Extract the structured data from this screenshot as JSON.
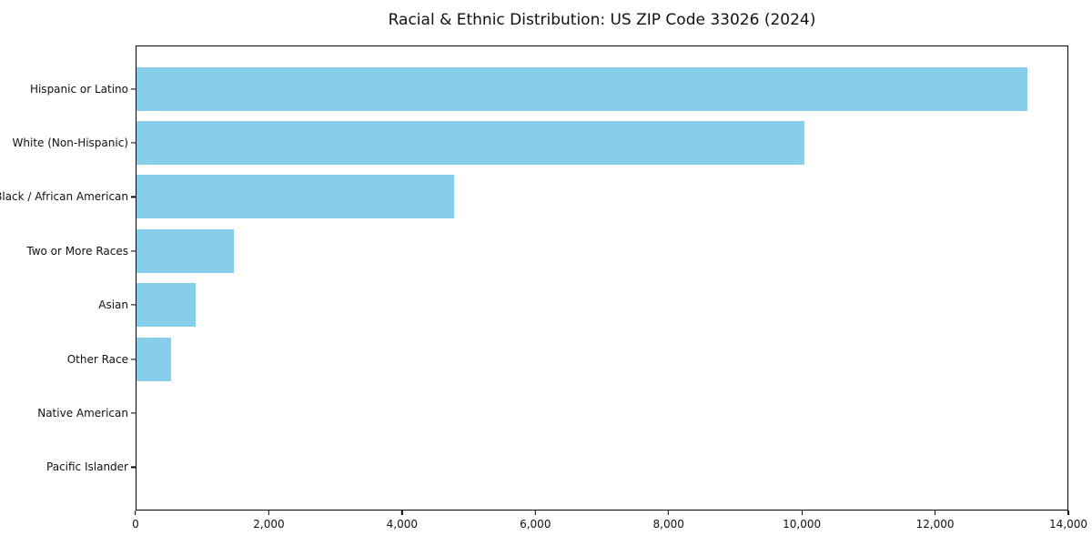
{
  "page": {
    "background": "#ffffff"
  },
  "chart_data": {
    "type": "bar",
    "orientation": "horizontal",
    "title": "Racial & Ethnic Distribution: US ZIP Code 33026 (2024)",
    "categories": [
      "Hispanic or Latino",
      "White (Non-Hispanic)",
      "Black / African American",
      "Two or More Races",
      "Asian",
      "Other Race",
      "Native American",
      "Pacific Islander"
    ],
    "values": [
      13400,
      10050,
      4780,
      1470,
      890,
      520,
      0,
      0
    ],
    "bar_color": "#87CEEB",
    "axis_color": "#000000",
    "text_color": "#111111",
    "xlabel": "",
    "ylabel": "",
    "xlim": [
      0,
      14000
    ],
    "x_ticks": [
      0,
      2000,
      4000,
      6000,
      8000,
      10000,
      12000,
      14000
    ],
    "x_tick_labels": [
      "0",
      "2,000",
      "4,000",
      "6,000",
      "8,000",
      "10,000",
      "12,000",
      "14,000"
    ],
    "grid": false,
    "legend_position": "none"
  }
}
